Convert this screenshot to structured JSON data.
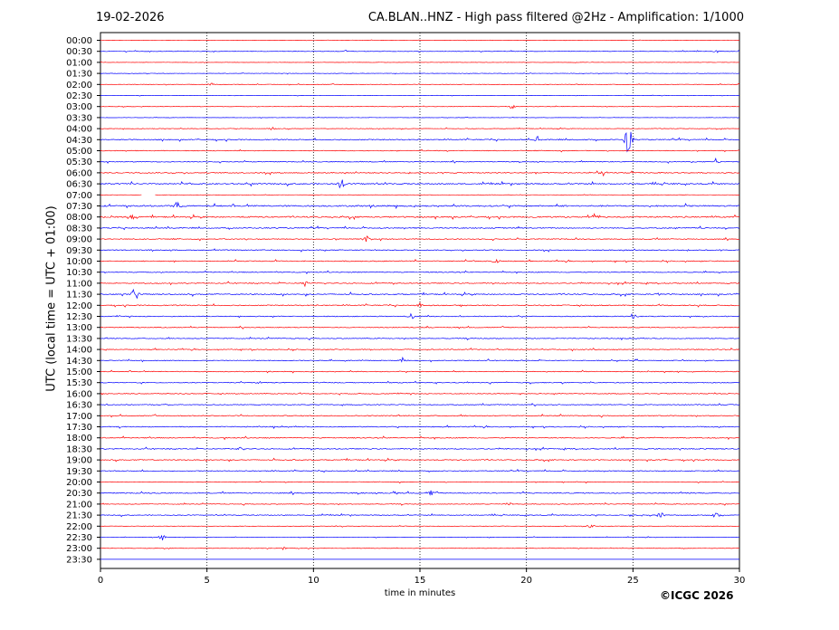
{
  "header": {
    "date": "19-02-2026",
    "title": "CA.BLAN..HNZ - High pass filtered @2Hz - Amplification: 1/1000"
  },
  "footer": {
    "copyright": "©ICGC 2026"
  },
  "chart_data": {
    "type": "line",
    "title": "CA.BLAN..HNZ - High pass filtered @2Hz - Amplification: 1/1000",
    "xlabel": "time in minutes",
    "ylabel": "UTC (local time = UTC + 01:00)",
    "xlim": [
      0,
      30
    ],
    "xticks": [
      0,
      5,
      10,
      15,
      20,
      25,
      30
    ],
    "grid": "vertical dotted lines at 5, 10, 15, 20, 25",
    "trace_colors": [
      "#ff0000",
      "#0000ff"
    ],
    "rows": [
      "00:00",
      "00:30",
      "01:00",
      "01:30",
      "02:00",
      "02:30",
      "03:00",
      "03:30",
      "04:00",
      "04:30",
      "05:00",
      "05:30",
      "06:00",
      "06:30",
      "07:00",
      "07:30",
      "08:00",
      "08:30",
      "09:00",
      "09:30",
      "10:00",
      "10:30",
      "11:00",
      "11:30",
      "12:00",
      "12:30",
      "13:00",
      "13:30",
      "14:00",
      "14:30",
      "15:00",
      "15:30",
      "16:00",
      "16:30",
      "17:00",
      "17:30",
      "18:00",
      "18:30",
      "19:00",
      "19:30",
      "20:00",
      "20:30",
      "21:00",
      "21:30",
      "22:00",
      "22:30",
      "23:00",
      "23:30"
    ],
    "active_rows": 48,
    "noise_level": [
      0.3,
      0.5,
      0.3,
      0.4,
      0.5,
      0.3,
      0.4,
      0.3,
      0.5,
      1.0,
      0.7,
      0.8,
      1.0,
      1.2,
      0.3,
      1.4,
      1.3,
      1.0,
      0.9,
      0.9,
      0.9,
      0.8,
      0.9,
      1.1,
      1.0,
      0.9,
      0.8,
      0.8,
      0.8,
      0.8,
      0.8,
      0.8,
      0.8,
      0.8,
      0.9,
      0.9,
      0.9,
      0.9,
      0.9,
      0.8,
      0.6,
      1.0,
      0.7,
      0.8,
      0.5,
      0.4,
      0.4,
      0
    ],
    "events": [
      {
        "row": 0,
        "t": 23.6,
        "amp": 1
      },
      {
        "row": 1,
        "t": 11.5,
        "amp": 3
      },
      {
        "row": 1,
        "t": 28.9,
        "amp": 3
      },
      {
        "row": 4,
        "t": 5.2,
        "amp": 2
      },
      {
        "row": 6,
        "t": 19.3,
        "amp": 5
      },
      {
        "row": 8,
        "t": 8.1,
        "amp": 3
      },
      {
        "row": 9,
        "t": 24.8,
        "amp": 30
      },
      {
        "row": 9,
        "t": 20.5,
        "amp": 3
      },
      {
        "row": 11,
        "t": 28.9,
        "amp": 5
      },
      {
        "row": 12,
        "t": 23.6,
        "amp": 4
      },
      {
        "row": 13,
        "t": 11.3,
        "amp": 8
      },
      {
        "row": 15,
        "t": 3.6,
        "amp": 6
      },
      {
        "row": 16,
        "t": 1.5,
        "amp": 4
      },
      {
        "row": 16,
        "t": 23.2,
        "amp": 4
      },
      {
        "row": 18,
        "t": 12.5,
        "amp": 6
      },
      {
        "row": 20,
        "t": 18.6,
        "amp": 5
      },
      {
        "row": 22,
        "t": 9.6,
        "amp": 4
      },
      {
        "row": 23,
        "t": 1.6,
        "amp": 14
      },
      {
        "row": 23,
        "t": 26.2,
        "amp": 3
      },
      {
        "row": 24,
        "t": 15.0,
        "amp": 4
      },
      {
        "row": 25,
        "t": 14.6,
        "amp": 4
      },
      {
        "row": 25,
        "t": 25.0,
        "amp": 5
      },
      {
        "row": 29,
        "t": 14.2,
        "amp": 4
      },
      {
        "row": 37,
        "t": 6.6,
        "amp": 3
      },
      {
        "row": 41,
        "t": 13.8,
        "amp": 4
      },
      {
        "row": 41,
        "t": 15.5,
        "amp": 5
      },
      {
        "row": 42,
        "t": 19.2,
        "amp": 3
      },
      {
        "row": 43,
        "t": 26.3,
        "amp": 6
      },
      {
        "row": 43,
        "t": 28.9,
        "amp": 5
      },
      {
        "row": 44,
        "t": 23.0,
        "amp": 4
      },
      {
        "row": 45,
        "t": 2.9,
        "amp": 5
      },
      {
        "row": 46,
        "t": 8.6,
        "amp": 2
      }
    ],
    "gaps": [
      {
        "row": 14,
        "from": 1.95,
        "to": 2.55
      }
    ]
  }
}
